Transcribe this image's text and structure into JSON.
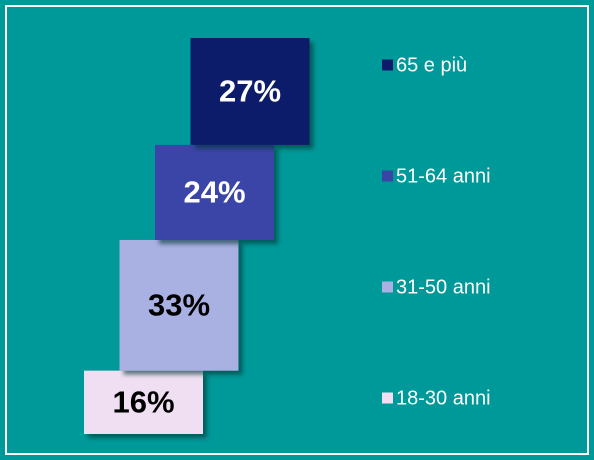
{
  "chart_data": {
    "type": "stacked-steps",
    "series": [
      {
        "name": "18-30 anni",
        "color": "#f0dff2",
        "values": [
          16
        ],
        "value_labels": [
          "16%"
        ]
      },
      {
        "name": "31-50 anni",
        "color": "#a9b0e2",
        "values": [
          33
        ],
        "value_labels": [
          "33%"
        ]
      },
      {
        "name": "51-64 anni",
        "color": "#3a45a8",
        "values": [
          24
        ],
        "value_labels": [
          "24%"
        ]
      },
      {
        "name": "65 e più",
        "color": "#0e1a6b",
        "values": [
          27
        ],
        "value_labels": [
          "27%"
        ]
      }
    ]
  }
}
